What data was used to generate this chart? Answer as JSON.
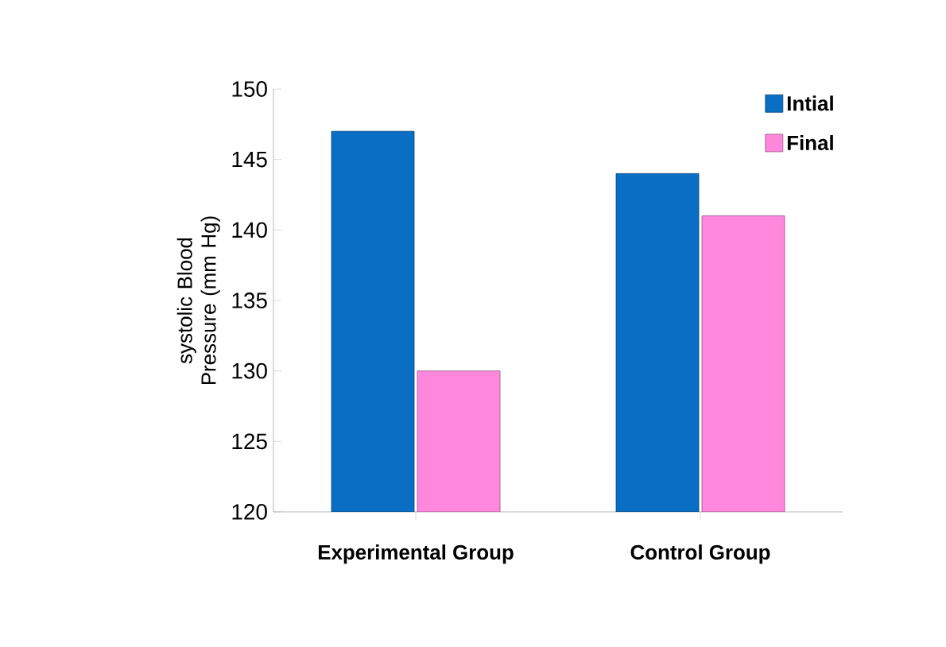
{
  "chart_data": {
    "type": "bar",
    "ylabel": "systolic Blood Pressure (mm Hg)",
    "categories": [
      "Experimental Group",
      "Control Group"
    ],
    "series": [
      {
        "name": "Intial",
        "color": "#0a6fc4",
        "values": [
          147,
          144
        ]
      },
      {
        "name": "Final",
        "color": "#ff88dd",
        "values": [
          130,
          141
        ]
      }
    ],
    "ylim": [
      120,
      150
    ],
    "yticks": [
      120,
      125,
      130,
      135,
      140,
      145,
      150
    ],
    "legend": "top right"
  }
}
